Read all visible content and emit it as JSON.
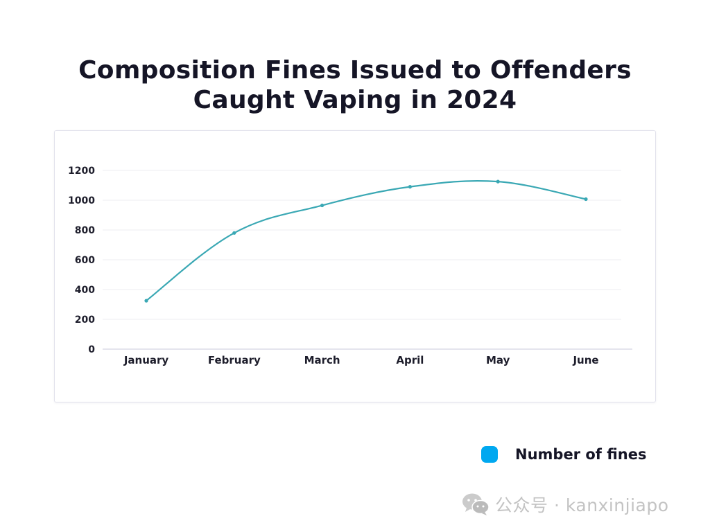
{
  "chart_data": {
    "type": "line",
    "title": "Composition Fines Issued to Offenders Caught Vaping in 2024",
    "title_lines": [
      "Composition Fines Issued to Offenders",
      "Caught Vaping in 2024"
    ],
    "categories": [
      "January",
      "February",
      "March",
      "April",
      "May",
      "June"
    ],
    "series": [
      {
        "name": "Number of fines",
        "values": [
          325,
          780,
          965,
          1090,
          1125,
          1007
        ],
        "color": "#3aa8b4"
      }
    ],
    "xlabel": "",
    "ylabel": "",
    "ylim": [
      0,
      1200
    ],
    "yticks": [
      0,
      200,
      400,
      600,
      800,
      1000,
      1200
    ],
    "grid": true,
    "curve": "smooth",
    "legend_position": "bottom-right",
    "legend_swatch_color": "#00a8f0"
  },
  "watermark": {
    "text": "公众号 · kanxinjiapo",
    "icon": "wechat-icon"
  }
}
